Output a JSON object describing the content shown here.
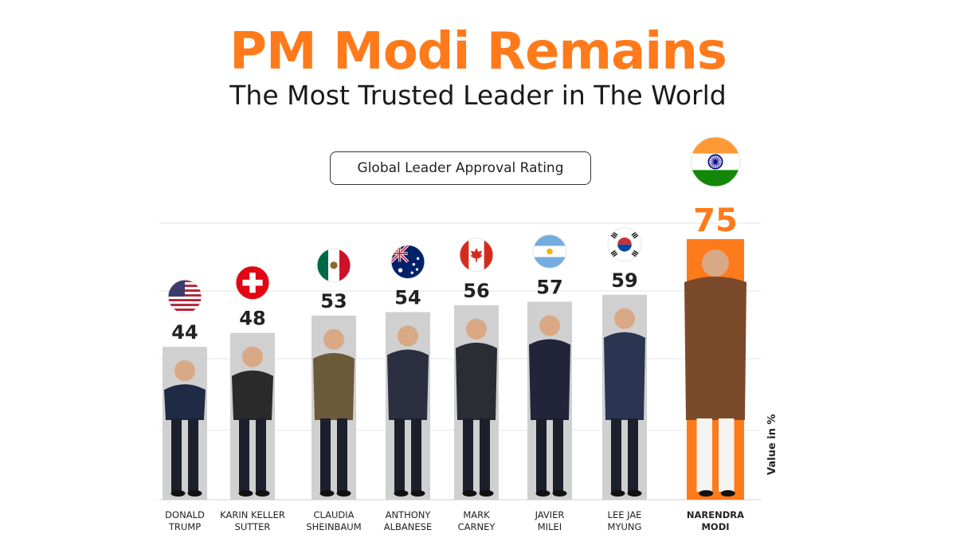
{
  "title": "PM Modi Remains",
  "subtitle": "The Most Trusted Leader in The World",
  "chart_data": {
    "type": "bar",
    "title": "Global Leader Approval Rating",
    "ylabel": "Value in %",
    "ylim": [
      0,
      80
    ],
    "grid": true,
    "categories": [
      [
        "DONALD",
        "TRUMP"
      ],
      [
        "KARIN KELLER",
        "SUTTER"
      ],
      [
        "CLAUDIA",
        "SHEINBAUM"
      ],
      [
        "ANTHONY",
        "ALBANESE"
      ],
      [
        "MARK",
        "CARNEY"
      ],
      [
        "JAVIER",
        "MILEI"
      ],
      [
        "LEE JAE",
        "MYUNG"
      ],
      [
        "NARENDRA",
        "MODI"
      ]
    ],
    "values": [
      44,
      48,
      53,
      54,
      56,
      57,
      59,
      75
    ],
    "flags": [
      "usa-flag-icon",
      "switzerland-flag-icon",
      "mexico-flag-icon",
      "australia-flag-icon",
      "canada-flag-icon",
      "argentina-flag-icon",
      "south-korea-flag-icon",
      "india-flag-icon"
    ],
    "colors": {
      "bar": "#d0d0d0",
      "highlight_bar": "#ff7a1a",
      "highlight_label": "#ff7a1a",
      "label": "#222222"
    },
    "highlight_index": 7
  }
}
